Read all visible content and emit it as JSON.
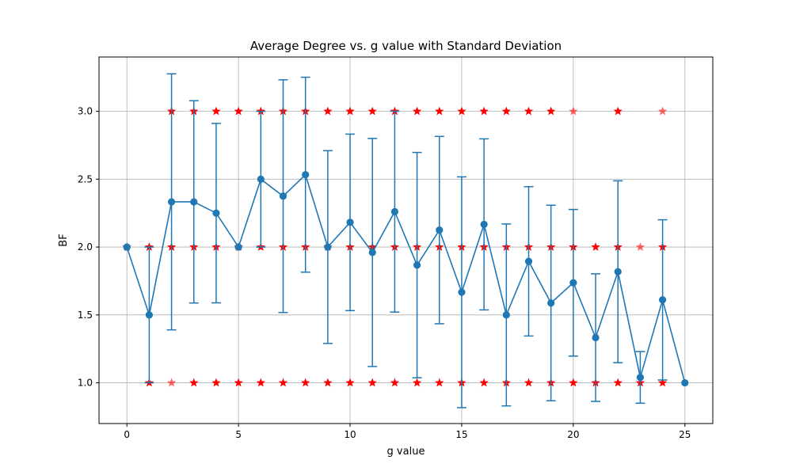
{
  "chart_data": {
    "type": "line",
    "title": "Average Degree vs. g value with Standard Deviation",
    "xlabel": "g value",
    "ylabel": "BF",
    "xlim": [
      -1.25,
      26.25
    ],
    "ylim": [
      0.7,
      3.4
    ],
    "xticks": [
      0,
      5,
      10,
      15,
      20,
      25
    ],
    "yticks": [
      1.0,
      1.5,
      2.0,
      2.5,
      3.0
    ],
    "grid": true,
    "colors": {
      "line": "#1f77b4",
      "star": "#ff0000",
      "grid": "#b0b0b0"
    },
    "series": [
      {
        "x": [
          0,
          1,
          2,
          3,
          4,
          5,
          6,
          7,
          8,
          9,
          10,
          11,
          12,
          13,
          14,
          15,
          16,
          17,
          18,
          19,
          20,
          21,
          22,
          23,
          24,
          25
        ],
        "mean": [
          2.0,
          1.5,
          2.333,
          2.333,
          2.25,
          2.0,
          2.5,
          2.375,
          2.533,
          2.0,
          2.182,
          1.96,
          2.261,
          1.867,
          2.125,
          1.667,
          2.167,
          1.5,
          1.895,
          1.588,
          1.737,
          1.333,
          1.818,
          1.04,
          1.611,
          1.0
        ],
        "std": [
          0.0,
          0.5,
          0.943,
          0.745,
          0.661,
          0.0,
          0.5,
          0.857,
          0.718,
          0.71,
          0.65,
          0.84,
          0.74,
          0.83,
          0.69,
          0.85,
          0.63,
          0.67,
          0.55,
          0.72,
          0.54,
          0.47,
          0.67,
          0.19,
          0.59,
          0.0
        ]
      }
    ],
    "points": {
      "x": [
        0,
        1,
        1,
        2,
        2,
        2,
        3,
        3,
        3,
        4,
        4,
        4,
        5,
        5,
        5,
        6,
        6,
        6,
        7,
        7,
        7,
        8,
        8,
        8,
        9,
        9,
        9,
        10,
        10,
        10,
        11,
        11,
        11,
        12,
        12,
        12,
        13,
        13,
        13,
        14,
        14,
        14,
        15,
        15,
        15,
        16,
        16,
        16,
        17,
        17,
        17,
        18,
        18,
        18,
        19,
        19,
        19,
        20,
        20,
        20,
        21,
        21,
        22,
        22,
        22,
        23,
        23,
        24,
        24,
        24
      ],
      "y": [
        2,
        1,
        2,
        1,
        2,
        3,
        1,
        2,
        3,
        1,
        2,
        3,
        1,
        2,
        3,
        1,
        2,
        3,
        1,
        2,
        3,
        1,
        2,
        3,
        1,
        2,
        3,
        1,
        2,
        3,
        1,
        2,
        3,
        1,
        2,
        3,
        1,
        2,
        3,
        1,
        2,
        3,
        1,
        2,
        3,
        1,
        2,
        3,
        1,
        2,
        3,
        1,
        2,
        3,
        1,
        2,
        3,
        1,
        2,
        3,
        1,
        2,
        1,
        2,
        3,
        1,
        2,
        1,
        2,
        3
      ],
      "opacity": [
        1,
        1,
        1,
        0.6,
        1,
        1,
        1,
        1,
        1,
        1,
        1,
        1,
        1,
        1,
        1,
        1,
        1,
        1,
        1,
        1,
        1,
        1,
        1,
        1,
        1,
        1,
        1,
        1,
        1,
        1,
        1,
        1,
        1,
        1,
        1,
        1,
        1,
        1,
        1,
        1,
        1,
        1,
        1,
        1,
        1,
        1,
        1,
        1,
        1,
        1,
        1,
        1,
        1,
        1,
        1,
        1,
        1,
        1,
        1,
        0.6,
        1,
        1,
        1,
        1,
        1,
        1,
        0.6,
        1,
        1,
        0.6
      ]
    }
  }
}
